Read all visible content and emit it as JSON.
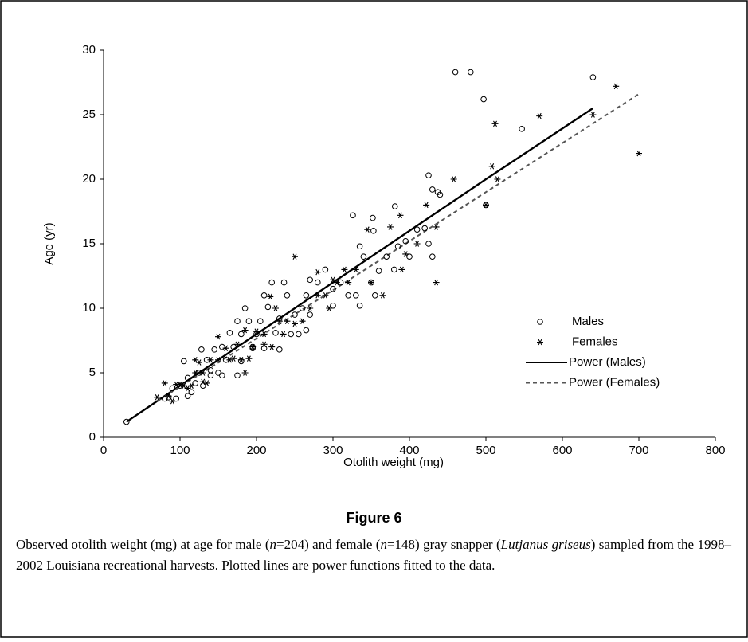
{
  "chart_data": {
    "type": "scatter",
    "x_label": "Otolith weight (mg)",
    "y_label": "Age (yr)",
    "xlim": [
      0,
      800
    ],
    "xticks": [
      0,
      100,
      200,
      300,
      400,
      500,
      600,
      700,
      800
    ],
    "ylim": [
      0,
      30
    ],
    "yticks": [
      0,
      5,
      10,
      15,
      20,
      25,
      30
    ],
    "legend": "right",
    "series": [
      {
        "name": "Males",
        "type": "scatter",
        "marker": "circle",
        "color": "#000000",
        "x": [
          30,
          460,
          480,
          497,
          547,
          640,
          500,
          425,
          430,
          437,
          440,
          326,
          352,
          381,
          353,
          335,
          340,
          420,
          425,
          430,
          400,
          395,
          410,
          385,
          370,
          360,
          380,
          350,
          330,
          320,
          300,
          300,
          290,
          280,
          270,
          265,
          260,
          250,
          240,
          236,
          230,
          230,
          220,
          215,
          210,
          205,
          200,
          195,
          190,
          185,
          180,
          175,
          170,
          165,
          160,
          155,
          150,
          145,
          140,
          135,
          130,
          128,
          125,
          120,
          115,
          110,
          105,
          100,
          95,
          90,
          85,
          80,
          265,
          310,
          335,
          355,
          270,
          255,
          225,
          210,
          195,
          180,
          175,
          155,
          110,
          140,
          245
        ],
        "values": [
          1.2,
          28.3,
          28.3,
          26.2,
          23.9,
          27.9,
          18,
          20.3,
          19.2,
          19,
          18.8,
          17.2,
          17,
          17.9,
          16,
          14.8,
          14,
          16.2,
          15,
          14,
          14,
          15.2,
          16.1,
          14.8,
          14,
          12.9,
          13,
          12,
          11,
          11,
          11.5,
          10.2,
          13,
          12,
          12.2,
          11,
          10,
          9.5,
          11,
          12,
          9.2,
          6.8,
          12,
          10.1,
          11,
          9,
          8,
          7,
          9,
          10,
          8,
          9,
          7,
          8.1,
          6,
          7,
          5,
          6.8,
          5.2,
          6,
          4,
          6.8,
          5,
          4.2,
          3.5,
          3.2,
          5.9,
          4,
          3,
          3.8,
          3.1,
          3,
          8.3,
          12,
          10.2,
          11,
          9.5,
          8,
          8.1,
          6.9,
          6.9,
          5.9,
          4.8,
          4.8,
          4.6,
          4.8,
          8
        ]
      },
      {
        "name": "Females",
        "type": "scatter",
        "marker": "asterisk",
        "color": "#000000",
        "x": [
          670,
          700,
          640,
          570,
          512,
          508,
          515,
          500,
          458,
          422,
          388,
          375,
          410,
          435,
          435,
          395,
          390,
          365,
          350,
          320,
          305,
          250,
          300,
          290,
          280,
          270,
          260,
          250,
          240,
          235,
          225,
          218,
          210,
          200,
          195,
          185,
          185,
          180,
          175,
          170,
          165,
          160,
          150,
          140,
          135,
          130,
          125,
          120,
          115,
          110,
          105,
          100,
          95,
          90,
          85,
          80,
          70,
          345,
          315,
          330,
          280,
          295,
          230,
          210,
          190,
          150,
          120,
          130,
          220
        ],
        "values": [
          27.2,
          22,
          25,
          24.9,
          24.3,
          21,
          20,
          18,
          20,
          18,
          17.2,
          16.3,
          15,
          16.3,
          12,
          14.2,
          13,
          11,
          12,
          12,
          12,
          14,
          12.2,
          11,
          11,
          10,
          9,
          8.8,
          9,
          8,
          10,
          10.9,
          8,
          8.2,
          7,
          8.3,
          5,
          6,
          7.2,
          6.1,
          6,
          6.9,
          6,
          6,
          4.2,
          5,
          5.8,
          5,
          4,
          3.8,
          4,
          4.1,
          4.1,
          2.8,
          3.2,
          4.2,
          3.1,
          16.1,
          13,
          13,
          12.8,
          10,
          9,
          7.2,
          6.1,
          7.8,
          6,
          4.3,
          7
        ]
      },
      {
        "name": "Power (Males)",
        "type": "line",
        "color": "#000000",
        "dash": false,
        "x": [
          30,
          300,
          500,
          640
        ],
        "values": [
          1.2,
          12.0,
          20.0,
          25.5
        ]
      },
      {
        "name": "Power (Females)",
        "type": "line",
        "color": "#555555",
        "dash": true,
        "x": [
          70,
          300,
          500,
          700
        ],
        "values": [
          2.8,
          11.4,
          19.0,
          26.6
        ]
      }
    ]
  },
  "figure_label": "Figure 6",
  "caption": [
    "Observed otolith weight (mg) at age for male (",
    "n",
    "=204) and female (",
    "n",
    "=148) gray snapper (",
    "Lutjanus griseus",
    ") sampled from the 1998–2002 Louisiana recreational harvests. Plotted lines are power functions fitted to the data."
  ]
}
